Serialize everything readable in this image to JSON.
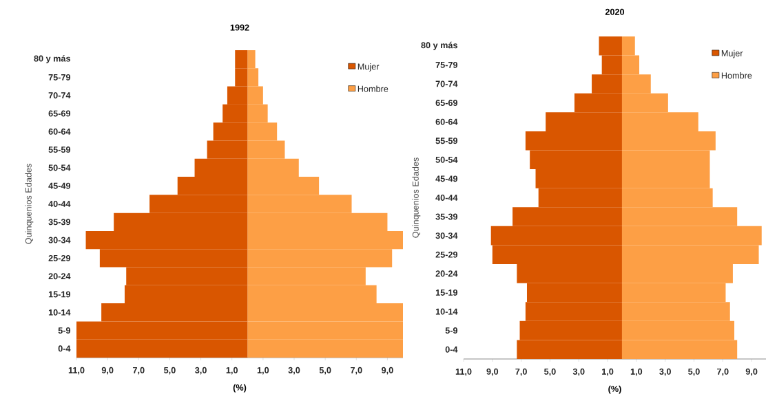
{
  "chart_data": [
    {
      "type": "bar",
      "orientation": "horizontal",
      "stacked": true,
      "title": "1992",
      "xlabel": "(%)",
      "ylabel": "Quinquenios Edades",
      "legend": "top right",
      "categories": [
        "80 y más",
        "75-79",
        "70-74",
        "65-69",
        "60-64",
        "55-59",
        "50-54",
        "45-49",
        "40-44",
        "35-39",
        "30-34",
        "25-29",
        "20-24",
        "15-19",
        "10-14",
        "5-9",
        "0-4"
      ],
      "xlim": [
        -11,
        10
      ],
      "xticks": [
        {
          "value": -11,
          "label": "11,0"
        },
        {
          "value": -9,
          "label": "9,0"
        },
        {
          "value": -7,
          "label": "7,0"
        },
        {
          "value": -5,
          "label": "5,0"
        },
        {
          "value": -3,
          "label": "3,0"
        },
        {
          "value": -1,
          "label": "1,0"
        },
        {
          "value": 1,
          "label": "1,0"
        },
        {
          "value": 3,
          "label": "3,0"
        },
        {
          "value": 5,
          "label": "5,0"
        },
        {
          "value": 7,
          "label": "7,0"
        },
        {
          "value": 9,
          "label": "9,0"
        }
      ],
      "series": [
        {
          "name": "Mujer",
          "color": "#d95600",
          "values": [
            -0.8,
            -0.8,
            -1.3,
            -1.6,
            -2.2,
            -2.6,
            -3.4,
            -4.5,
            -6.3,
            -8.6,
            -10.4,
            -9.5,
            -7.8,
            -7.9,
            -9.4,
            -11.0,
            -11.0
          ]
        },
        {
          "name": "Hombre",
          "color": "#fd9f45",
          "values": [
            0.5,
            0.7,
            1.0,
            1.3,
            1.9,
            2.4,
            3.3,
            4.6,
            6.7,
            9.0,
            10.0,
            9.3,
            7.6,
            8.3,
            10.0,
            10.0,
            10.0
          ]
        }
      ]
    },
    {
      "type": "bar",
      "orientation": "horizontal",
      "stacked": true,
      "title": "2020",
      "xlabel": "(%)",
      "ylabel": "Quinquenios Edades",
      "legend": "top right",
      "categories": [
        "80 y más",
        "75-79",
        "70-74",
        "65-69",
        "60-64",
        "55-59",
        "50-54",
        "45-49",
        "40-44",
        "35-39",
        "30-34",
        "25-29",
        "20-24",
        "15-19",
        "10-14",
        "5-9",
        "0-4"
      ],
      "xlim": [
        -11,
        10
      ],
      "xticks": [
        {
          "value": -11,
          "label": "11,0"
        },
        {
          "value": -9,
          "label": "9,0"
        },
        {
          "value": -7,
          "label": "7,0"
        },
        {
          "value": -5,
          "label": "5,0"
        },
        {
          "value": -3,
          "label": "3,0"
        },
        {
          "value": -1,
          "label": "1,0"
        },
        {
          "value": 1,
          "label": "1,0"
        },
        {
          "value": 3,
          "label": "3,0"
        },
        {
          "value": 5,
          "label": "5,0"
        },
        {
          "value": 7,
          "label": "7,0"
        },
        {
          "value": 9,
          "label": "9,0"
        }
      ],
      "series": [
        {
          "name": "Mujer",
          "color": "#d95600",
          "values": [
            -1.6,
            -1.4,
            -2.1,
            -3.3,
            -5.3,
            -6.7,
            -6.4,
            -6.0,
            -5.8,
            -7.6,
            -9.1,
            -9.0,
            -7.3,
            -6.6,
            -6.7,
            -7.1,
            -7.3
          ]
        },
        {
          "name": "Hombre",
          "color": "#fd9f45",
          "values": [
            0.9,
            1.2,
            2.0,
            3.2,
            5.3,
            6.5,
            6.1,
            6.1,
            6.3,
            8.0,
            9.7,
            9.5,
            7.7,
            7.2,
            7.5,
            7.8,
            8.0
          ]
        }
      ]
    }
  ]
}
